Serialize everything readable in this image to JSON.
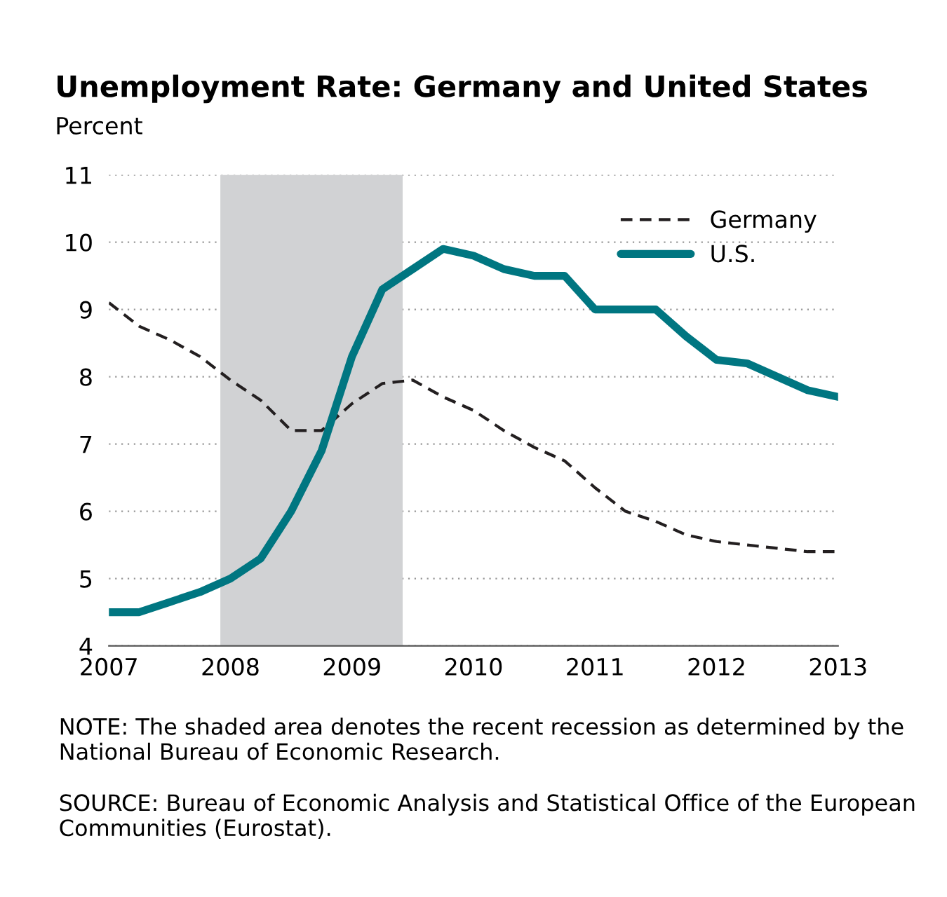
{
  "chart_data": {
    "type": "line",
    "title": "Unemployment Rate: Germany and United States",
    "ylabel": "Percent",
    "x": [
      2007,
      2007.25,
      2007.5,
      2007.75,
      2008,
      2008.25,
      2008.5,
      2008.75,
      2009,
      2009.25,
      2009.5,
      2009.75,
      2010,
      2010.25,
      2010.5,
      2010.75,
      2011,
      2011.25,
      2011.5,
      2011.75,
      2012,
      2012.25,
      2012.5,
      2012.75,
      2013
    ],
    "series": [
      {
        "name": "Germany",
        "color": "#231f20",
        "line_style": "dashed",
        "values": [
          9.1,
          8.75,
          8.55,
          8.3,
          7.95,
          7.65,
          7.2,
          7.2,
          7.6,
          7.9,
          7.95,
          7.7,
          7.5,
          7.2,
          6.95,
          6.75,
          6.35,
          6.0,
          5.85,
          5.65,
          5.55,
          5.5,
          5.45,
          5.4,
          5.4
        ]
      },
      {
        "name": "U.S.",
        "color": "#007681",
        "line_style": "solid",
        "values": [
          4.5,
          4.5,
          4.65,
          4.8,
          5.0,
          5.3,
          6.0,
          6.9,
          8.3,
          9.3,
          9.6,
          9.9,
          9.8,
          9.6,
          9.5,
          9.5,
          9.0,
          9.0,
          9.0,
          8.6,
          8.25,
          8.2,
          8.0,
          7.8,
          7.7
        ]
      }
    ],
    "bands": [
      {
        "axis": "x",
        "from": 2007.917,
        "to": 2009.417,
        "color": "#d1d2d4"
      }
    ],
    "xlim": [
      2007,
      2013
    ],
    "xticks": [
      2007,
      2008,
      2009,
      2010,
      2011,
      2012,
      2013
    ],
    "ylim": [
      4,
      11
    ],
    "yticks": [
      4,
      5,
      6,
      7,
      8,
      9,
      10,
      11
    ],
    "grid": "y",
    "legend": "top right",
    "annotations": [
      "NOTE: The shaded area denotes the recent recession as determined by the National Bureau of Economic Research.",
      "SOURCE: Bureau of Economic Analysis and Statistical Office of the European Communities (Eurostat)."
    ]
  }
}
